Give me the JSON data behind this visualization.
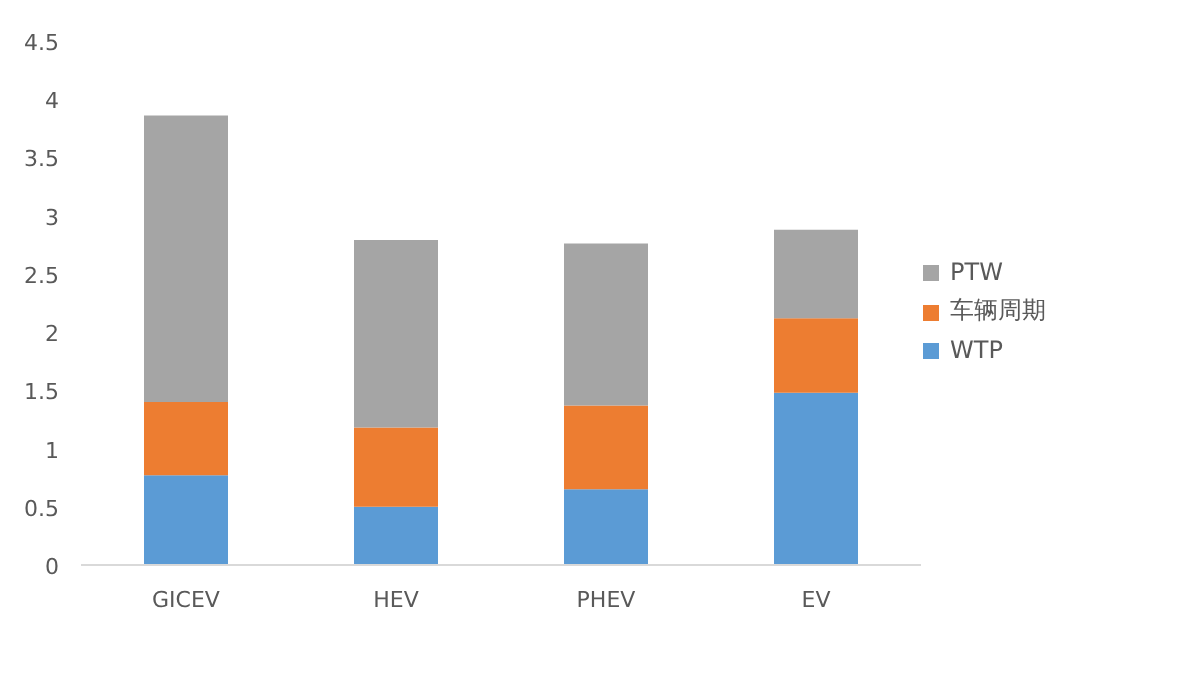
{
  "chart_data": {
    "type": "bar",
    "stacked": true,
    "categories": [
      "GICEV",
      "HEV",
      "PHEV",
      "EV"
    ],
    "series": [
      {
        "name": "WTP",
        "color": "#5b9bd5",
        "values": [
          0.77,
          0.5,
          0.65,
          1.48
        ]
      },
      {
        "name": "车辆周期",
        "color": "#ed7d31",
        "values": [
          0.63,
          0.68,
          0.72,
          0.64
        ]
      },
      {
        "name": "PTW",
        "color": "#a5a5a5",
        "values": [
          2.46,
          1.61,
          1.39,
          0.76
        ]
      }
    ],
    "ylim": [
      0,
      4.5
    ],
    "yticks": [
      0,
      0.5,
      1,
      1.5,
      2,
      2.5,
      3,
      3.5,
      4,
      4.5
    ],
    "grid": false,
    "legend": "right"
  }
}
